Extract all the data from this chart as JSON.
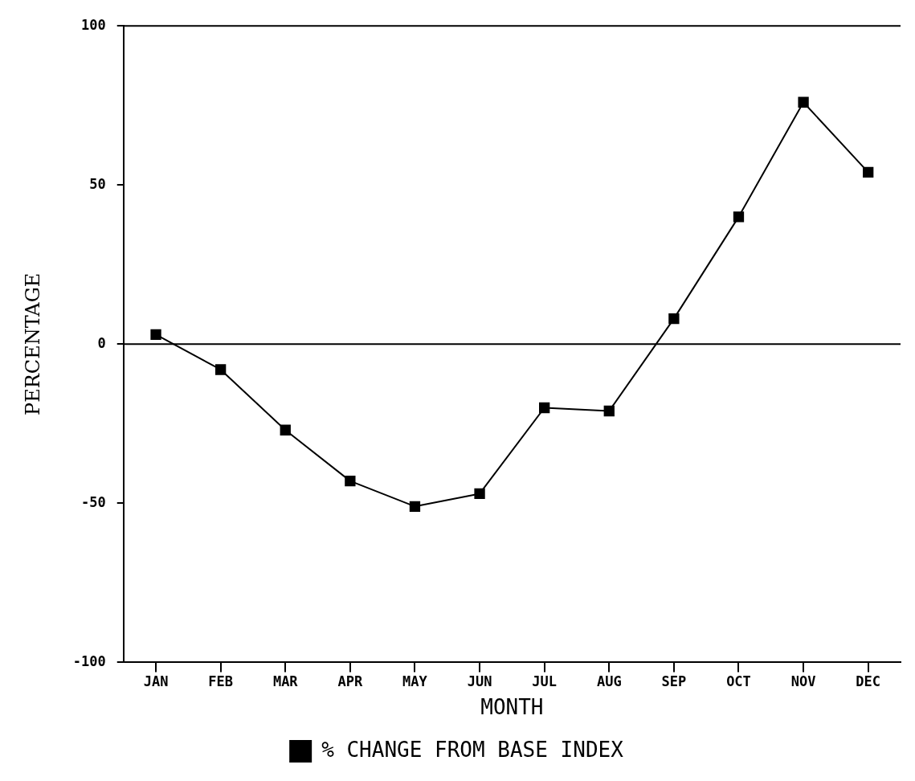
{
  "chart_data": {
    "type": "line",
    "xlabel": "MONTH",
    "ylabel": "PERCENTAGE",
    "categories": [
      "JAN",
      "FEB",
      "MAR",
      "APR",
      "MAY",
      "JUN",
      "JUL",
      "AUG",
      "SEP",
      "OCT",
      "NOV",
      "DEC"
    ],
    "series": [
      {
        "name": "% CHANGE FROM BASE INDEX",
        "color": "#000000",
        "values": [
          3,
          -8,
          -27,
          -43,
          -51,
          -47,
          -20,
          -21,
          8,
          40,
          76,
          54
        ]
      }
    ],
    "ylim": [
      -100,
      100
    ],
    "yticks": [
      -100,
      -50,
      0,
      50,
      100
    ],
    "grid": false,
    "legend": "bottom",
    "marker": "square",
    "line_style": "solid",
    "ref_lines": [
      {
        "axis": "y",
        "value": 0,
        "color": "#000000"
      }
    ]
  }
}
